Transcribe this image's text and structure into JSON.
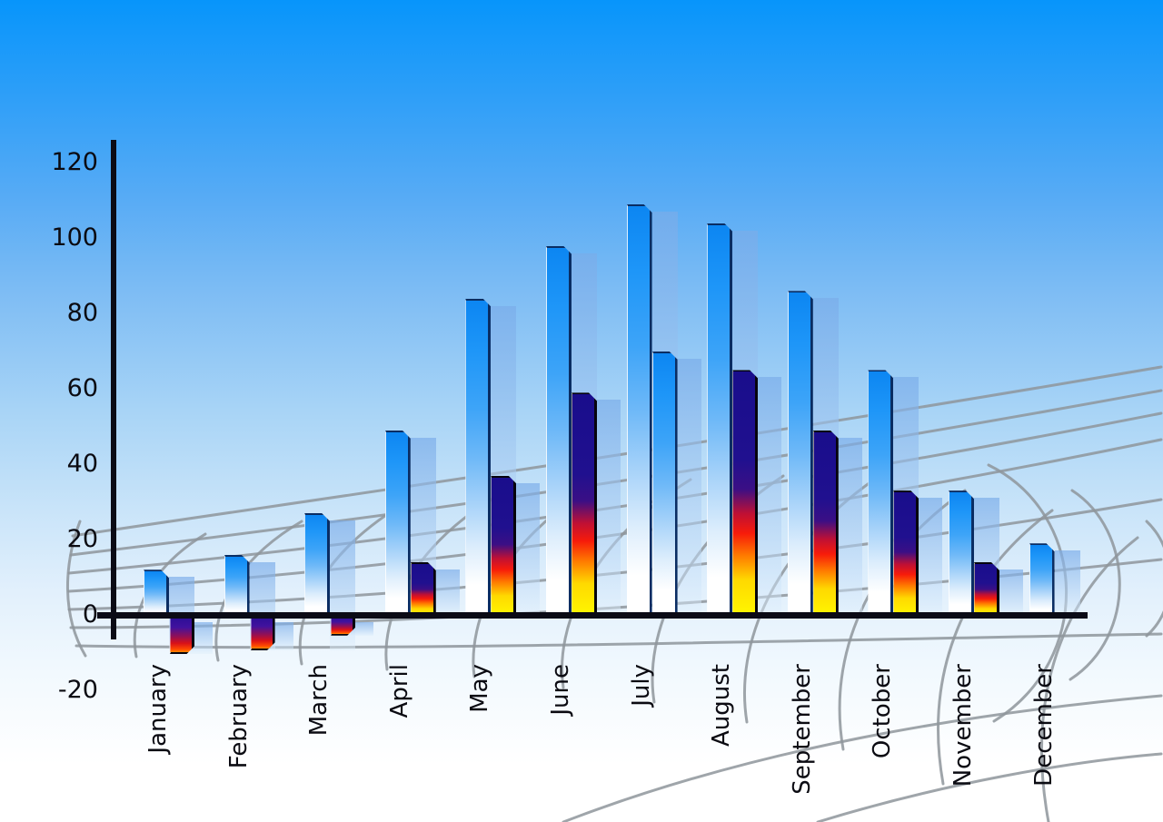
{
  "chart_data": {
    "type": "bar",
    "title": "",
    "xlabel": "",
    "ylabel": "",
    "categories": [
      "January",
      "February",
      "March",
      "April",
      "May",
      "June",
      "July",
      "August",
      "September",
      "October",
      "November",
      "December"
    ],
    "series": [
      {
        "name": "primary-blue-bars",
        "values": [
          12,
          16,
          27,
          49,
          84,
          98,
          109,
          104,
          86,
          65,
          33,
          19
        ]
      },
      {
        "name": "secondary-bars",
        "values": [
          -10,
          -9,
          -5,
          14,
          37,
          59,
          70,
          65,
          49,
          33,
          14,
          null
        ],
        "styles": [
          "flame",
          "flame",
          "flame",
          "flame",
          "flame",
          "flame",
          "blue",
          "flame",
          "flame",
          "flame",
          "flame",
          "none"
        ]
      }
    ],
    "y_ticks": [
      120,
      100,
      80,
      60,
      40,
      20,
      0,
      -20
    ],
    "ylim": [
      -20,
      120
    ],
    "legend_position": "none",
    "grid": "decorative curved gray mesh over sky-gradient background"
  },
  "colors": {
    "sky_top": "#0795fb",
    "sky_bottom": "#ffffff",
    "bar_blue_top": "#0c86f2",
    "bar_blue_bottom": "#ffffff",
    "flame_navy": "#20108f",
    "flame_red": "#f71b0a",
    "flame_yellow": "#fff800",
    "echo_bar": "#a0c6f0",
    "mesh_gray": "#8e959b",
    "axis_black": "#0b0b15",
    "label_text": "#0b0b12"
  }
}
